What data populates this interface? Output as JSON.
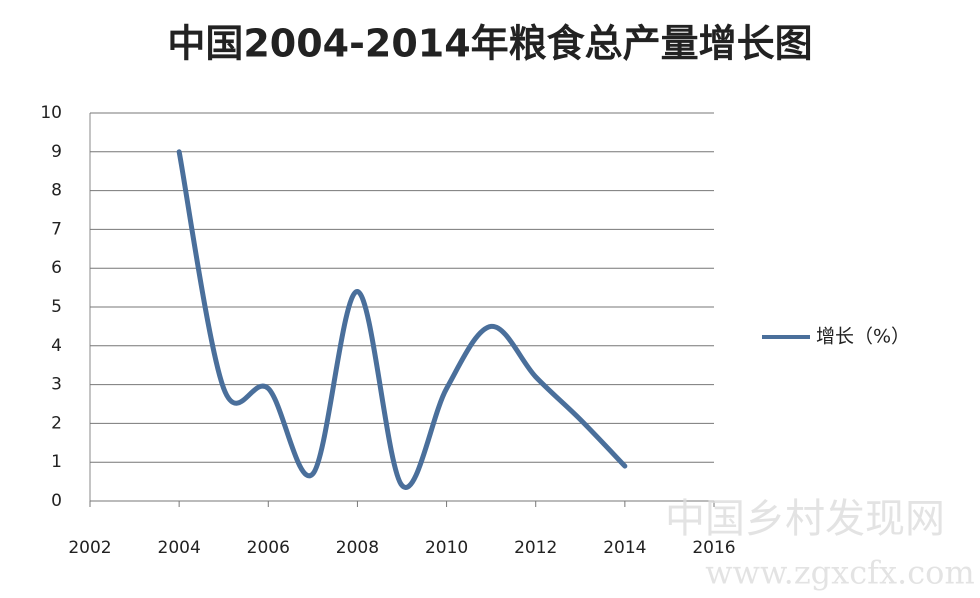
{
  "chart_data": {
    "type": "line",
    "title": "中国2004-2014年粮食总产量增长图",
    "x": [
      2004,
      2005,
      2006,
      2007,
      2008,
      2009,
      2010,
      2011,
      2012,
      2013,
      2014
    ],
    "series": [
      {
        "name": "增长（%）",
        "color": "#4a6f9b",
        "values": [
          9.0,
          2.9,
          2.9,
          0.7,
          5.4,
          0.4,
          2.9,
          4.5,
          3.2,
          2.1,
          0.9
        ]
      }
    ],
    "xlim": [
      2002,
      2016
    ],
    "xticks": [
      2002,
      2004,
      2006,
      2008,
      2010,
      2012,
      2014,
      2016
    ],
    "ylim": [
      0,
      10
    ],
    "yticks": [
      0,
      1,
      2,
      3,
      4,
      5,
      6,
      7,
      8,
      9,
      10
    ],
    "grid": true,
    "legend": "right",
    "smooth": true,
    "watermark": [
      "中国乡村发现网",
      "www.zgxcfx.com"
    ]
  }
}
